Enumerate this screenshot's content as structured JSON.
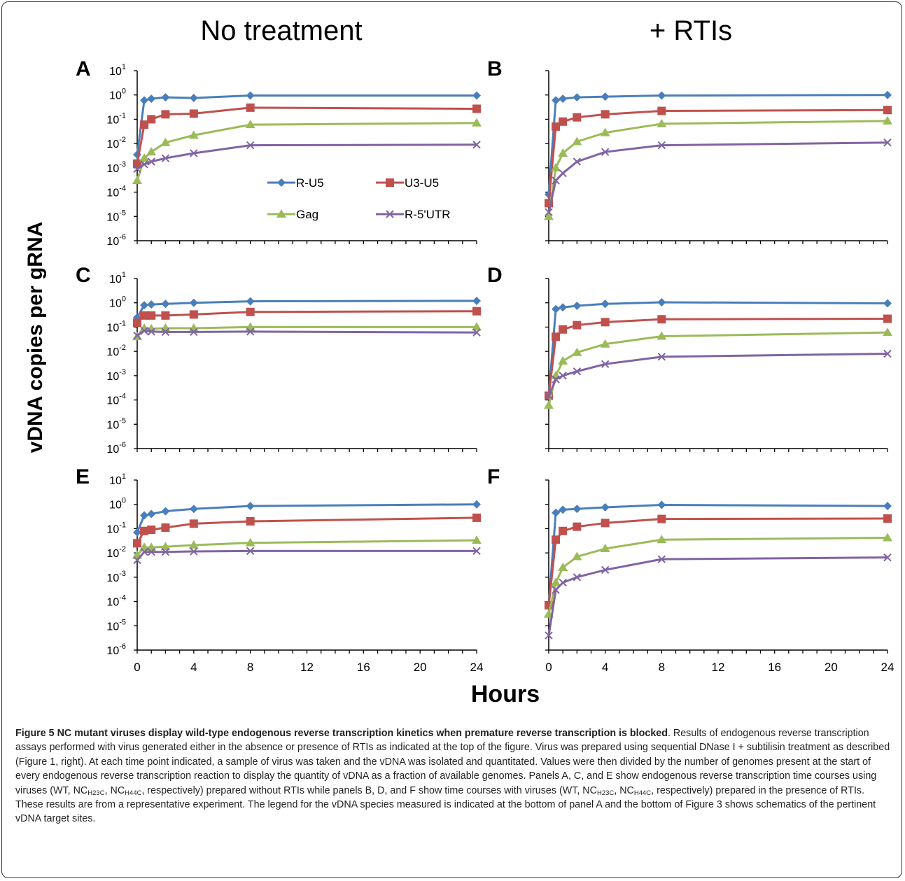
{
  "figure": {
    "col_titles": [
      "No treatment",
      "+ RTIs"
    ],
    "y_axis_label": "vDNA copies per gRNA",
    "x_axis_label": "Hours",
    "x_ticks": [
      "0",
      "4",
      "8",
      "12",
      "16",
      "20",
      "24"
    ],
    "y_ticks": [
      "-6",
      "-5",
      "-4",
      "-3",
      "-2",
      "-1",
      "0",
      "1"
    ],
    "y_tick_base": "10",
    "legend": [
      "R-U5",
      "U3-U5",
      "Gag",
      "R-5'UTR"
    ]
  },
  "chart_data": [
    {
      "panel": "A",
      "type": "line",
      "x": [
        0,
        0.5,
        1,
        2,
        4,
        8,
        24
      ],
      "ylim": [
        1e-06,
        10
      ],
      "yscale": "log",
      "xlim": [
        0,
        24
      ],
      "series": [
        {
          "name": "R-U5",
          "color": "#4a7ebb",
          "marker": "diamond",
          "values": [
            0.0035,
            0.6,
            0.7,
            0.8,
            0.75,
            0.95,
            0.95
          ]
        },
        {
          "name": "U3-U5",
          "color": "#c0504d",
          "marker": "square",
          "values": [
            0.0015,
            0.06,
            0.1,
            0.16,
            0.17,
            0.3,
            0.27
          ]
        },
        {
          "name": "Gag",
          "color": "#9bbb59",
          "marker": "triangle",
          "values": [
            0.0003,
            0.0025,
            0.0045,
            0.011,
            0.022,
            0.06,
            0.07
          ]
        },
        {
          "name": "R-5'UTR",
          "color": "#8064a2",
          "marker": "x",
          "values": [
            0.0009,
            0.0014,
            0.0018,
            0.0025,
            0.004,
            0.0085,
            0.009
          ]
        }
      ]
    },
    {
      "panel": "B",
      "type": "line",
      "x": [
        0,
        0.5,
        1,
        2,
        4,
        8,
        24
      ],
      "ylim": [
        1e-06,
        10
      ],
      "yscale": "log",
      "xlim": [
        0,
        24
      ],
      "series": [
        {
          "name": "R-U5",
          "color": "#4a7ebb",
          "marker": "diamond",
          "values": [
            8e-05,
            0.6,
            0.7,
            0.8,
            0.85,
            0.95,
            1.0
          ]
        },
        {
          "name": "U3-U5",
          "color": "#c0504d",
          "marker": "square",
          "values": [
            3.5e-05,
            0.05,
            0.08,
            0.12,
            0.16,
            0.22,
            0.24
          ]
        },
        {
          "name": "Gag",
          "color": "#9bbb59",
          "marker": "triangle",
          "values": [
            1e-05,
            0.001,
            0.004,
            0.012,
            0.028,
            0.065,
            0.085
          ]
        },
        {
          "name": "R-5'UTR",
          "color": "#8064a2",
          "marker": "x",
          "values": [
            1.5e-05,
            0.0003,
            0.0006,
            0.0018,
            0.0045,
            0.0085,
            0.011
          ]
        }
      ]
    },
    {
      "panel": "C",
      "type": "line",
      "x": [
        0,
        0.5,
        1,
        2,
        4,
        8,
        24
      ],
      "ylim": [
        1e-06,
        10
      ],
      "yscale": "log",
      "xlim": [
        0,
        24
      ],
      "series": [
        {
          "name": "R-U5",
          "color": "#4a7ebb",
          "marker": "diamond",
          "values": [
            0.25,
            0.8,
            0.85,
            0.9,
            1.0,
            1.15,
            1.2
          ]
        },
        {
          "name": "U3-U5",
          "color": "#c0504d",
          "marker": "square",
          "values": [
            0.15,
            0.3,
            0.3,
            0.3,
            0.33,
            0.42,
            0.45
          ]
        },
        {
          "name": "Gag",
          "color": "#9bbb59",
          "marker": "triangle",
          "values": [
            0.04,
            0.09,
            0.085,
            0.09,
            0.09,
            0.1,
            0.1
          ]
        },
        {
          "name": "R-5'UTR",
          "color": "#8064a2",
          "marker": "x",
          "values": [
            0.045,
            0.07,
            0.065,
            0.063,
            0.063,
            0.065,
            0.06
          ]
        }
      ]
    },
    {
      "panel": "D",
      "type": "line",
      "x": [
        0,
        0.5,
        1,
        2,
        4,
        8,
        24
      ],
      "ylim": [
        1e-06,
        10
      ],
      "yscale": "log",
      "xlim": [
        0,
        24
      ],
      "series": [
        {
          "name": "R-U5",
          "color": "#4a7ebb",
          "marker": "diamond",
          "values": [
            0.00015,
            0.55,
            0.65,
            0.75,
            0.9,
            1.05,
            0.95
          ]
        },
        {
          "name": "U3-U5",
          "color": "#c0504d",
          "marker": "square",
          "values": [
            0.00015,
            0.04,
            0.08,
            0.12,
            0.16,
            0.21,
            0.22
          ]
        },
        {
          "name": "Gag",
          "color": "#9bbb59",
          "marker": "triangle",
          "values": [
            6e-05,
            0.001,
            0.004,
            0.009,
            0.02,
            0.042,
            0.06
          ]
        },
        {
          "name": "R-5'UTR",
          "color": "#8064a2",
          "marker": "x",
          "values": [
            0.00015,
            0.0007,
            0.001,
            0.0015,
            0.003,
            0.006,
            0.008
          ]
        }
      ]
    },
    {
      "panel": "E",
      "type": "line",
      "x": [
        0,
        0.5,
        1,
        2,
        4,
        8,
        24
      ],
      "ylim": [
        1e-06,
        10
      ],
      "yscale": "log",
      "xlim": [
        0,
        24
      ],
      "series": [
        {
          "name": "R-U5",
          "color": "#4a7ebb",
          "marker": "diamond",
          "values": [
            0.07,
            0.35,
            0.4,
            0.52,
            0.65,
            0.85,
            1.0
          ]
        },
        {
          "name": "U3-U5",
          "color": "#c0504d",
          "marker": "square",
          "values": [
            0.025,
            0.08,
            0.09,
            0.11,
            0.16,
            0.2,
            0.28
          ]
        },
        {
          "name": "Gag",
          "color": "#9bbb59",
          "marker": "triangle",
          "values": [
            0.008,
            0.017,
            0.017,
            0.018,
            0.021,
            0.026,
            0.033
          ]
        },
        {
          "name": "R-5'UTR",
          "color": "#8064a2",
          "marker": "x",
          "values": [
            0.005,
            0.011,
            0.011,
            0.011,
            0.0115,
            0.012,
            0.012
          ]
        }
      ]
    },
    {
      "panel": "F",
      "type": "line",
      "x": [
        0,
        0.5,
        1,
        2,
        4,
        8,
        24
      ],
      "ylim": [
        1e-06,
        10
      ],
      "yscale": "log",
      "xlim": [
        0,
        24
      ],
      "series": [
        {
          "name": "R-U5",
          "color": "#4a7ebb",
          "marker": "diamond",
          "values": [
            7e-05,
            0.45,
            0.6,
            0.65,
            0.75,
            0.95,
            0.85
          ]
        },
        {
          "name": "U3-U5",
          "color": "#c0504d",
          "marker": "square",
          "values": [
            7e-05,
            0.035,
            0.08,
            0.12,
            0.17,
            0.25,
            0.26
          ]
        },
        {
          "name": "Gag",
          "color": "#9bbb59",
          "marker": "triangle",
          "values": [
            3e-05,
            0.0006,
            0.0025,
            0.007,
            0.015,
            0.035,
            0.042
          ]
        },
        {
          "name": "R-5'UTR",
          "color": "#8064a2",
          "marker": "x",
          "values": [
            4e-06,
            0.0003,
            0.0006,
            0.001,
            0.002,
            0.0055,
            0.0065
          ]
        }
      ]
    }
  ],
  "caption": {
    "title": "Figure 5 NC mutant viruses display wild-type endogenous reverse transcription kinetics when premature reverse transcription is blocked",
    "p1": ". Results of endogenous reverse transcription assays performed with virus generated either in the absence or presence of RTIs as indicated at the top of the figure. Virus was prepared using sequential DNase I + subtilisin treatment as described (Figure 1, right). At each time point indicated, a sample of virus was taken and the vDNA was isolated and quantitated. Values were then divided by the number of genomes present at the start of every endogenous reverse transcription reaction to display the quantity of vDNA as a fraction of available genomes. Panels A, C, and E show endogenous reverse transcription time courses using viruses (WT, NC",
    "sub1": "H23C",
    "p2": ", NC",
    "sub2": "H44C",
    "p3": ", respectively) prepared without RTIs while panels B, D, and F show time courses with viruses (WT, NC",
    "sub3": "H23C",
    "p4": ", NC",
    "sub4": "H44C",
    "p5": ", respectively) prepared in the presence of RTIs. These results are from a representative experiment. The legend for the vDNA species measured is indicated at the bottom of panel A and the bottom of Figure 3 shows schematics of the pertinent vDNA target sites."
  }
}
